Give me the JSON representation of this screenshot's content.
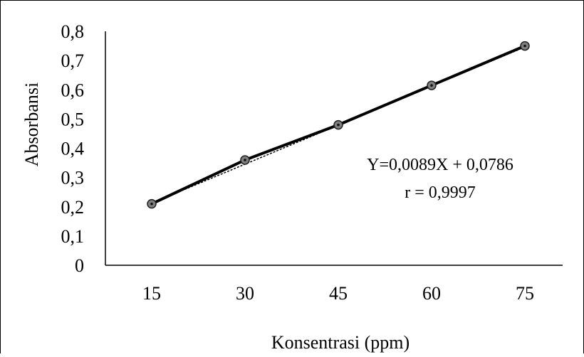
{
  "chart_data": {
    "type": "line",
    "xlabel": "Konsentrasi (ppm)",
    "ylabel": "Absorbansi",
    "categories": [
      "15",
      "30",
      "45",
      "60",
      "75"
    ],
    "x": [
      15,
      30,
      45,
      60,
      75
    ],
    "series": [
      {
        "values": [
          0.21,
          0.36,
          0.48,
          0.615,
          0.75
        ]
      }
    ],
    "ylim": [
      0,
      0.8
    ],
    "yticks": [
      "0",
      "0,1",
      "0,2",
      "0,3",
      "0,4",
      "0,5",
      "0,6",
      "0,7",
      "0,8"
    ],
    "grid": false,
    "legend": "none",
    "trendline": {
      "slope": 0.0089,
      "intercept": 0.0786
    },
    "annotations": [
      "Y=0,0089X + 0,0786",
      "r = 0,9997"
    ],
    "colors": {
      "line": "#000000",
      "marker_fill": "#7f7f7f",
      "marker_edge": "#222222",
      "axis": "#000000"
    }
  }
}
